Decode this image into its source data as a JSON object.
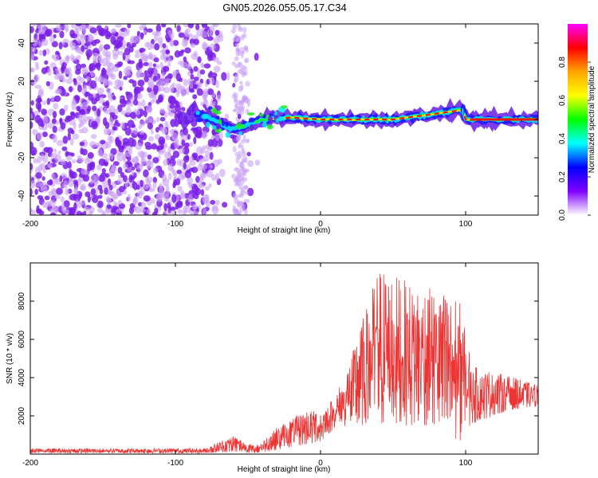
{
  "figure_title": "GN05.2026.055.05.17.C34",
  "chart_data": [
    {
      "type": "heatmap",
      "title": "",
      "xlabel": "Height of straight line (km)",
      "ylabel": "Frequency (Hz)",
      "xlim": [
        -200,
        150
      ],
      "ylim": [
        -50,
        50
      ],
      "xticks": [
        -200,
        -100,
        0,
        100
      ],
      "yticks": [
        -40,
        -20,
        0,
        20,
        40
      ],
      "colorbar": {
        "label": "Normalized spectral amplitude",
        "range": [
          0.0,
          1.0
        ],
        "ticks": [
          0.0,
          0.2,
          0.4,
          0.6,
          0.8
        ],
        "colormap": [
          "#ff00ff",
          "#ff0000",
          "#ffa500",
          "#ffff00",
          "#00ff00",
          "#00ffff",
          "#0000ff",
          "#8000ff",
          "#ffffff"
        ]
      },
      "ridge": {
        "description": "signal band centered near 0 Hz",
        "points": [
          {
            "x": -90,
            "y": 5
          },
          {
            "x": -80,
            "y": 2
          },
          {
            "x": -70,
            "y": -2
          },
          {
            "x": -60,
            "y": -5
          },
          {
            "x": -50,
            "y": -3
          },
          {
            "x": -40,
            "y": 0
          },
          {
            "x": -20,
            "y": 1
          },
          {
            "x": 0,
            "y": 0
          },
          {
            "x": 50,
            "y": 0
          },
          {
            "x": 98,
            "y": 5
          },
          {
            "x": 100,
            "y": 0
          },
          {
            "x": 150,
            "y": 0
          }
        ],
        "peak_amplitude": 1.0
      }
    },
    {
      "type": "line",
      "title": "",
      "xlabel": "Height of straight line (km)",
      "ylabel": "SNR (10 * v/v)",
      "xlim": [
        -200,
        150
      ],
      "ylim": [
        0,
        10000
      ],
      "xticks": [
        -200,
        -100,
        0,
        100
      ],
      "yticks": [
        2000,
        4000,
        6000,
        8000
      ],
      "series": [
        {
          "name": "SNR",
          "color": "#ee3333",
          "envelope": [
            {
              "x": -200,
              "min": 50,
              "max": 300
            },
            {
              "x": -150,
              "min": 50,
              "max": 300
            },
            {
              "x": -80,
              "min": 50,
              "max": 300
            },
            {
              "x": -60,
              "min": 100,
              "max": 1000
            },
            {
              "x": -45,
              "min": 50,
              "max": 400
            },
            {
              "x": -30,
              "min": 200,
              "max": 1400
            },
            {
              "x": -10,
              "min": 500,
              "max": 2300
            },
            {
              "x": 0,
              "min": 600,
              "max": 2300
            },
            {
              "x": 10,
              "min": 1400,
              "max": 3000
            },
            {
              "x": 20,
              "min": 1500,
              "max": 4800
            },
            {
              "x": 40,
              "min": 1500,
              "max": 9800
            },
            {
              "x": 60,
              "min": 1500,
              "max": 9000
            },
            {
              "x": 80,
              "min": 1500,
              "max": 8600
            },
            {
              "x": 95,
              "min": 600,
              "max": 8300
            },
            {
              "x": 105,
              "min": 1600,
              "max": 4600
            },
            {
              "x": 130,
              "min": 2300,
              "max": 4100
            },
            {
              "x": 150,
              "min": 2500,
              "max": 3600
            }
          ]
        }
      ]
    }
  ]
}
